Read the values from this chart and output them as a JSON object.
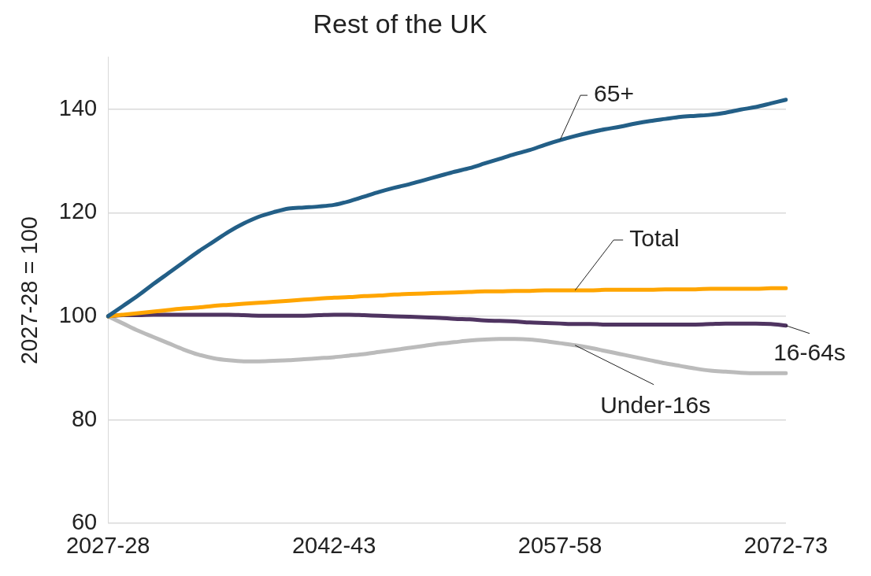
{
  "chart_data": {
    "type": "line",
    "title": "Rest of the UK",
    "ylabel": "2027-28 = 100",
    "categories": [
      "2027-28",
      null,
      null,
      null,
      null,
      null,
      null,
      null,
      null,
      null,
      null,
      null,
      null,
      null,
      null,
      "2042-43",
      null,
      null,
      null,
      null,
      null,
      null,
      null,
      null,
      null,
      null,
      null,
      null,
      null,
      null,
      "2057-58",
      null,
      null,
      null,
      null,
      null,
      null,
      null,
      null,
      null,
      null,
      null,
      null,
      null,
      null,
      "2072-73"
    ],
    "ylim": [
      60,
      150
    ],
    "yticks": [
      60,
      80,
      100,
      120,
      140
    ],
    "grid": "y",
    "legend": false,
    "marker": "none",
    "line_style": "solid",
    "series": [
      {
        "name": "65+",
        "color": "#235f87",
        "values": [
          100,
          102,
          104,
          106.2,
          108.3,
          110.4,
          112.5,
          114.4,
          116.3,
          117.9,
          119.2,
          120.1,
          120.8,
          121.0,
          121.2,
          121.5,
          122.2,
          123.1,
          124,
          124.8,
          125.5,
          126.3,
          127.1,
          127.9,
          128.6,
          129.5,
          130.4,
          131.3,
          132.1,
          133.1,
          134,
          134.8,
          135.5,
          136.1,
          136.6,
          137.2,
          137.7,
          138.1,
          138.5,
          138.7,
          138.9,
          139.3,
          139.9,
          140.4,
          141.1,
          141.8
        ]
      },
      {
        "name": "Total",
        "color": "#ffa500",
        "values": [
          100,
          100.3,
          100.6,
          100.9,
          101.2,
          101.5,
          101.7,
          102,
          102.2,
          102.4,
          102.6,
          102.8,
          103,
          103.2,
          103.4,
          103.6,
          103.7,
          103.9,
          104,
          104.2,
          104.3,
          104.4,
          104.5,
          104.6,
          104.7,
          104.8,
          104.8,
          104.9,
          104.9,
          105,
          105,
          105,
          105,
          105.1,
          105.1,
          105.1,
          105.1,
          105.2,
          105.2,
          105.2,
          105.3,
          105.3,
          105.3,
          105.3,
          105.4,
          105.4
        ]
      },
      {
        "name": "16-64s",
        "color": "#4f3461",
        "values": [
          100,
          100.2,
          100.2,
          100.3,
          100.3,
          100.3,
          100.3,
          100.3,
          100.3,
          100.2,
          100.1,
          100.1,
          100.1,
          100.1,
          100.2,
          100.3,
          100.3,
          100.2,
          100.1,
          100,
          99.9,
          99.8,
          99.7,
          99.5,
          99.4,
          99.2,
          99.1,
          99,
          98.8,
          98.7,
          98.6,
          98.5,
          98.5,
          98.4,
          98.4,
          98.4,
          98.4,
          98.4,
          98.4,
          98.4,
          98.5,
          98.6,
          98.6,
          98.6,
          98.5,
          98.2
        ]
      },
      {
        "name": "Under-16s",
        "color": "#bbbbbb",
        "values": [
          100,
          98.6,
          97.2,
          96,
          94.8,
          93.6,
          92.6,
          91.9,
          91.5,
          91.3,
          91.3,
          91.4,
          91.5,
          91.7,
          91.9,
          92.1,
          92.4,
          92.7,
          93.1,
          93.5,
          93.9,
          94.3,
          94.7,
          95,
          95.3,
          95.5,
          95.6,
          95.6,
          95.5,
          95.2,
          94.8,
          94.4,
          93.9,
          93.3,
          92.7,
          92.1,
          91.5,
          90.9,
          90.4,
          89.9,
          89.5,
          89.3,
          89.1,
          89,
          89,
          89
        ]
      }
    ]
  }
}
